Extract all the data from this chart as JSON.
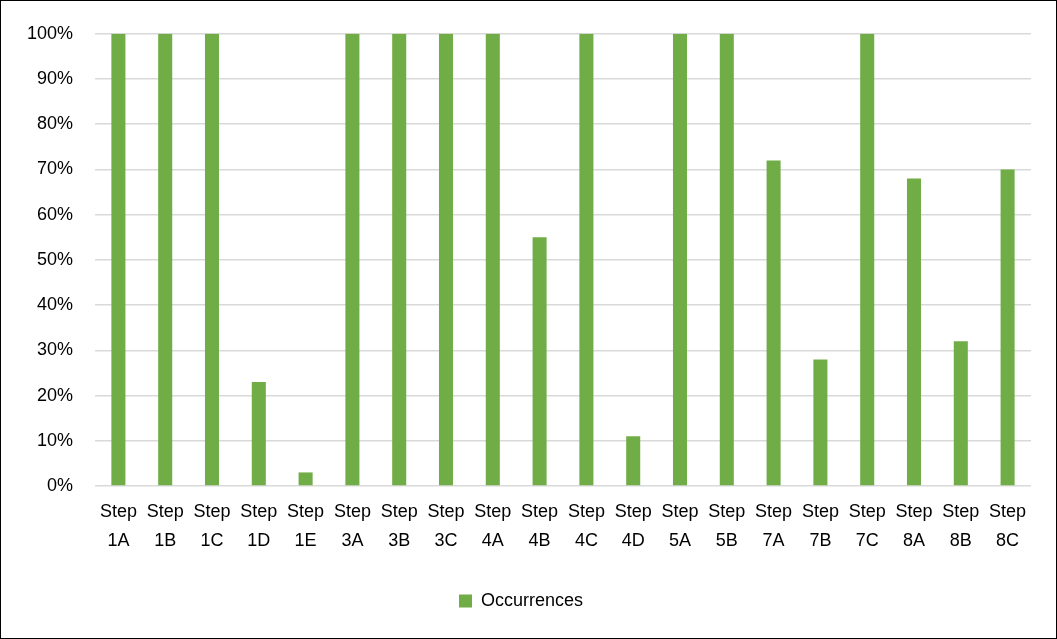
{
  "chart_data": {
    "type": "bar",
    "categories": [
      "Step 1A",
      "Step 1B",
      "Step 1C",
      "Step 1D",
      "Step 1E",
      "Step 3A",
      "Step 3B",
      "Step 3C",
      "Step 4A",
      "Step 4B",
      "Step 4C",
      "Step 4D",
      "Step 5A",
      "Step 5B",
      "Step 7A",
      "Step 7B",
      "Step 7C",
      "Step 8A",
      "Step 8B",
      "Step 8C"
    ],
    "series": [
      {
        "name": "Occurrences",
        "color": "#70ad47",
        "values": [
          100,
          100,
          100,
          23,
          3,
          100,
          100,
          100,
          100,
          55,
          100,
          11,
          100,
          100,
          72,
          28,
          100,
          68,
          32,
          70
        ]
      }
    ],
    "ylim": [
      0,
      100
    ],
    "yticks": [
      {
        "value": 0,
        "label": "0%"
      },
      {
        "value": 10,
        "label": "10%"
      },
      {
        "value": 20,
        "label": "20%"
      },
      {
        "value": 30,
        "label": "30%"
      },
      {
        "value": 40,
        "label": "40%"
      },
      {
        "value": 50,
        "label": "50%"
      },
      {
        "value": 60,
        "label": "60%"
      },
      {
        "value": 70,
        "label": "70%"
      },
      {
        "value": 80,
        "label": "80%"
      },
      {
        "value": 90,
        "label": "90%"
      },
      {
        "value": 100,
        "label": "100%"
      }
    ],
    "grid": "y",
    "legend": "bottom"
  }
}
